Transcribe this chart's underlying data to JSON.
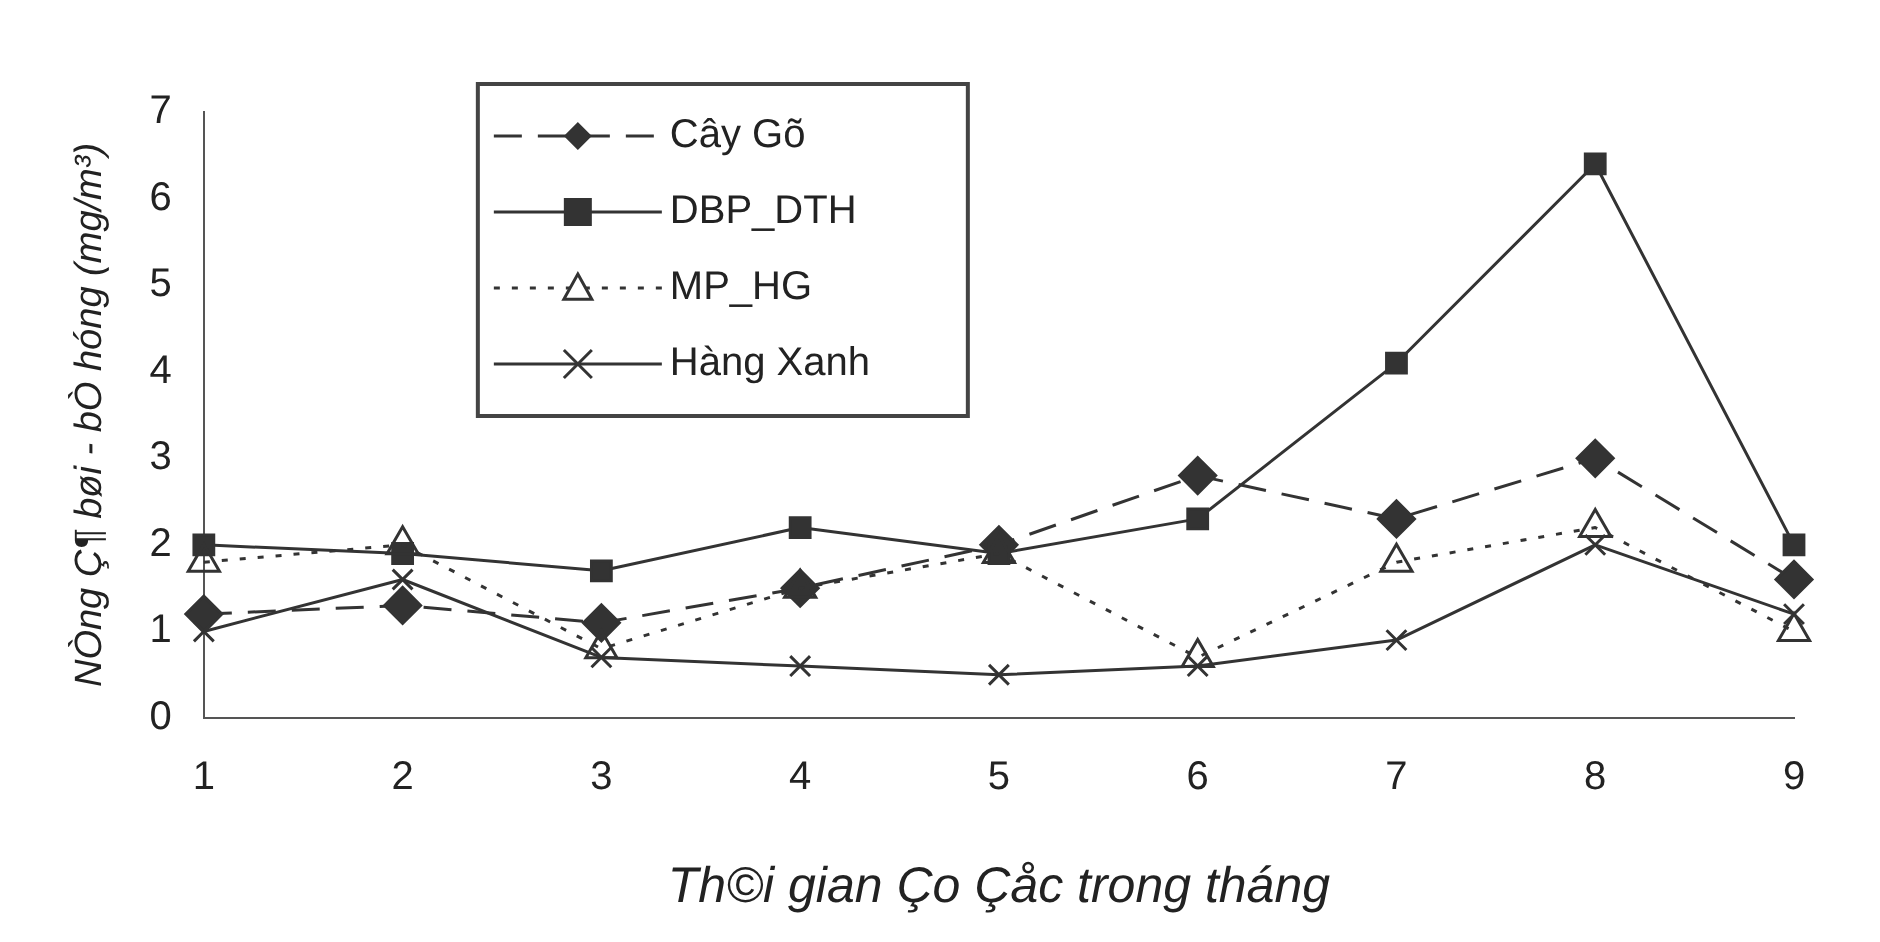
{
  "chart_data": {
    "type": "line",
    "xlabel": "Th©i gian Ço Çåc trong tháng",
    "ylabel": "NÒng Ç¶ bøi - bÒ hóng (mg/m³)",
    "categories": [
      "1",
      "2",
      "3",
      "4",
      "5",
      "6",
      "7",
      "8",
      "9"
    ],
    "ylim": [
      0,
      7
    ],
    "yticks": [
      0,
      1,
      2,
      3,
      4,
      5,
      6,
      7
    ],
    "grid": false,
    "legend": "top left",
    "series": [
      {
        "name": "Cây Gõ",
        "color": "#333333",
        "marker": "diamond",
        "line_style": "dashed",
        "values": [
          1.2,
          1.3,
          1.1,
          1.5,
          2.0,
          2.8,
          2.3,
          3.0,
          1.6
        ]
      },
      {
        "name": "DBP_DTH",
        "color": "#333333",
        "marker": "square",
        "line_style": "solid",
        "values": [
          2.0,
          1.9,
          1.7,
          2.2,
          1.9,
          2.3,
          4.1,
          6.4,
          2.0
        ]
      },
      {
        "name": "MP_HG",
        "color": "#333333",
        "marker": "triangle",
        "line_style": "dotted",
        "values": [
          1.8,
          2.0,
          0.8,
          1.5,
          1.9,
          0.7,
          1.8,
          2.2,
          1.0
        ]
      },
      {
        "name": "Hàng Xanh",
        "color": "#333333",
        "marker": "cross",
        "line_style": "solid",
        "values": [
          1.0,
          1.6,
          0.7,
          0.6,
          0.5,
          0.6,
          0.9,
          2.0,
          1.2
        ]
      }
    ]
  }
}
